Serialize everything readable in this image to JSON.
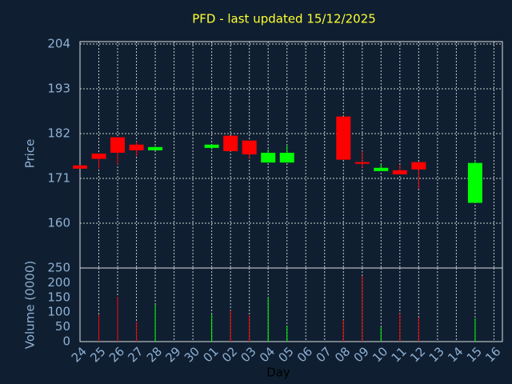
{
  "chart_data": {
    "type": "candlestick",
    "title": "PFD - last updated 15/12/2025",
    "ylabel": "Price",
    "volume_label": "Volume (0000)",
    "xlabel": "Day",
    "categories": [
      "24",
      "25",
      "26",
      "27",
      "28",
      "29",
      "30",
      "01",
      "02",
      "03",
      "04",
      "05",
      "06",
      "07",
      "08",
      "09",
      "10",
      "11",
      "12",
      "13",
      "14",
      "15",
      "16"
    ],
    "open": [
      174.2,
      177.1,
      181.1,
      179.3,
      177.9,
      null,
      null,
      178.5,
      181.5,
      180.3,
      174.9,
      174.9,
      null,
      null,
      186.2,
      175.0,
      172.8,
      173.0,
      175.0,
      null,
      null,
      165.0,
      null
    ],
    "high": [
      174.2,
      177.1,
      181.1,
      180.1,
      178.9,
      null,
      null,
      179.3,
      181.5,
      180.3,
      178.1,
      179.1,
      null,
      null,
      186.2,
      177.7,
      174.6,
      174.4,
      175.0,
      null,
      null,
      175.4,
      null
    ],
    "low": [
      173.4,
      173.4,
      174.4,
      176.4,
      177.9,
      null,
      null,
      178.1,
      177.7,
      175.8,
      174.9,
      174.9,
      null,
      null,
      175.6,
      173.6,
      172.8,
      172.0,
      168.5,
      null,
      null,
      165.0,
      null
    ],
    "close": [
      173.4,
      175.8,
      177.3,
      177.9,
      178.7,
      null,
      null,
      179.3,
      177.7,
      176.9,
      177.3,
      177.3,
      null,
      null,
      175.6,
      174.6,
      173.6,
      172.0,
      173.2,
      null,
      null,
      174.8,
      null
    ],
    "volume": [
      0,
      92,
      152,
      68,
      125,
      null,
      null,
      92,
      106,
      90,
      150,
      54,
      null,
      null,
      73,
      223,
      49,
      95,
      82,
      null,
      null,
      79,
      null
    ],
    "ylim": [
      149,
      204.6
    ],
    "yticks": [
      160,
      171,
      182,
      193,
      204
    ],
    "volume_ylim": [
      0,
      250
    ],
    "volume_yticks": [
      0,
      50,
      100,
      150,
      200,
      250
    ],
    "up_color": "#00ff00",
    "down_color": "#ff0000",
    "grid": true
  }
}
